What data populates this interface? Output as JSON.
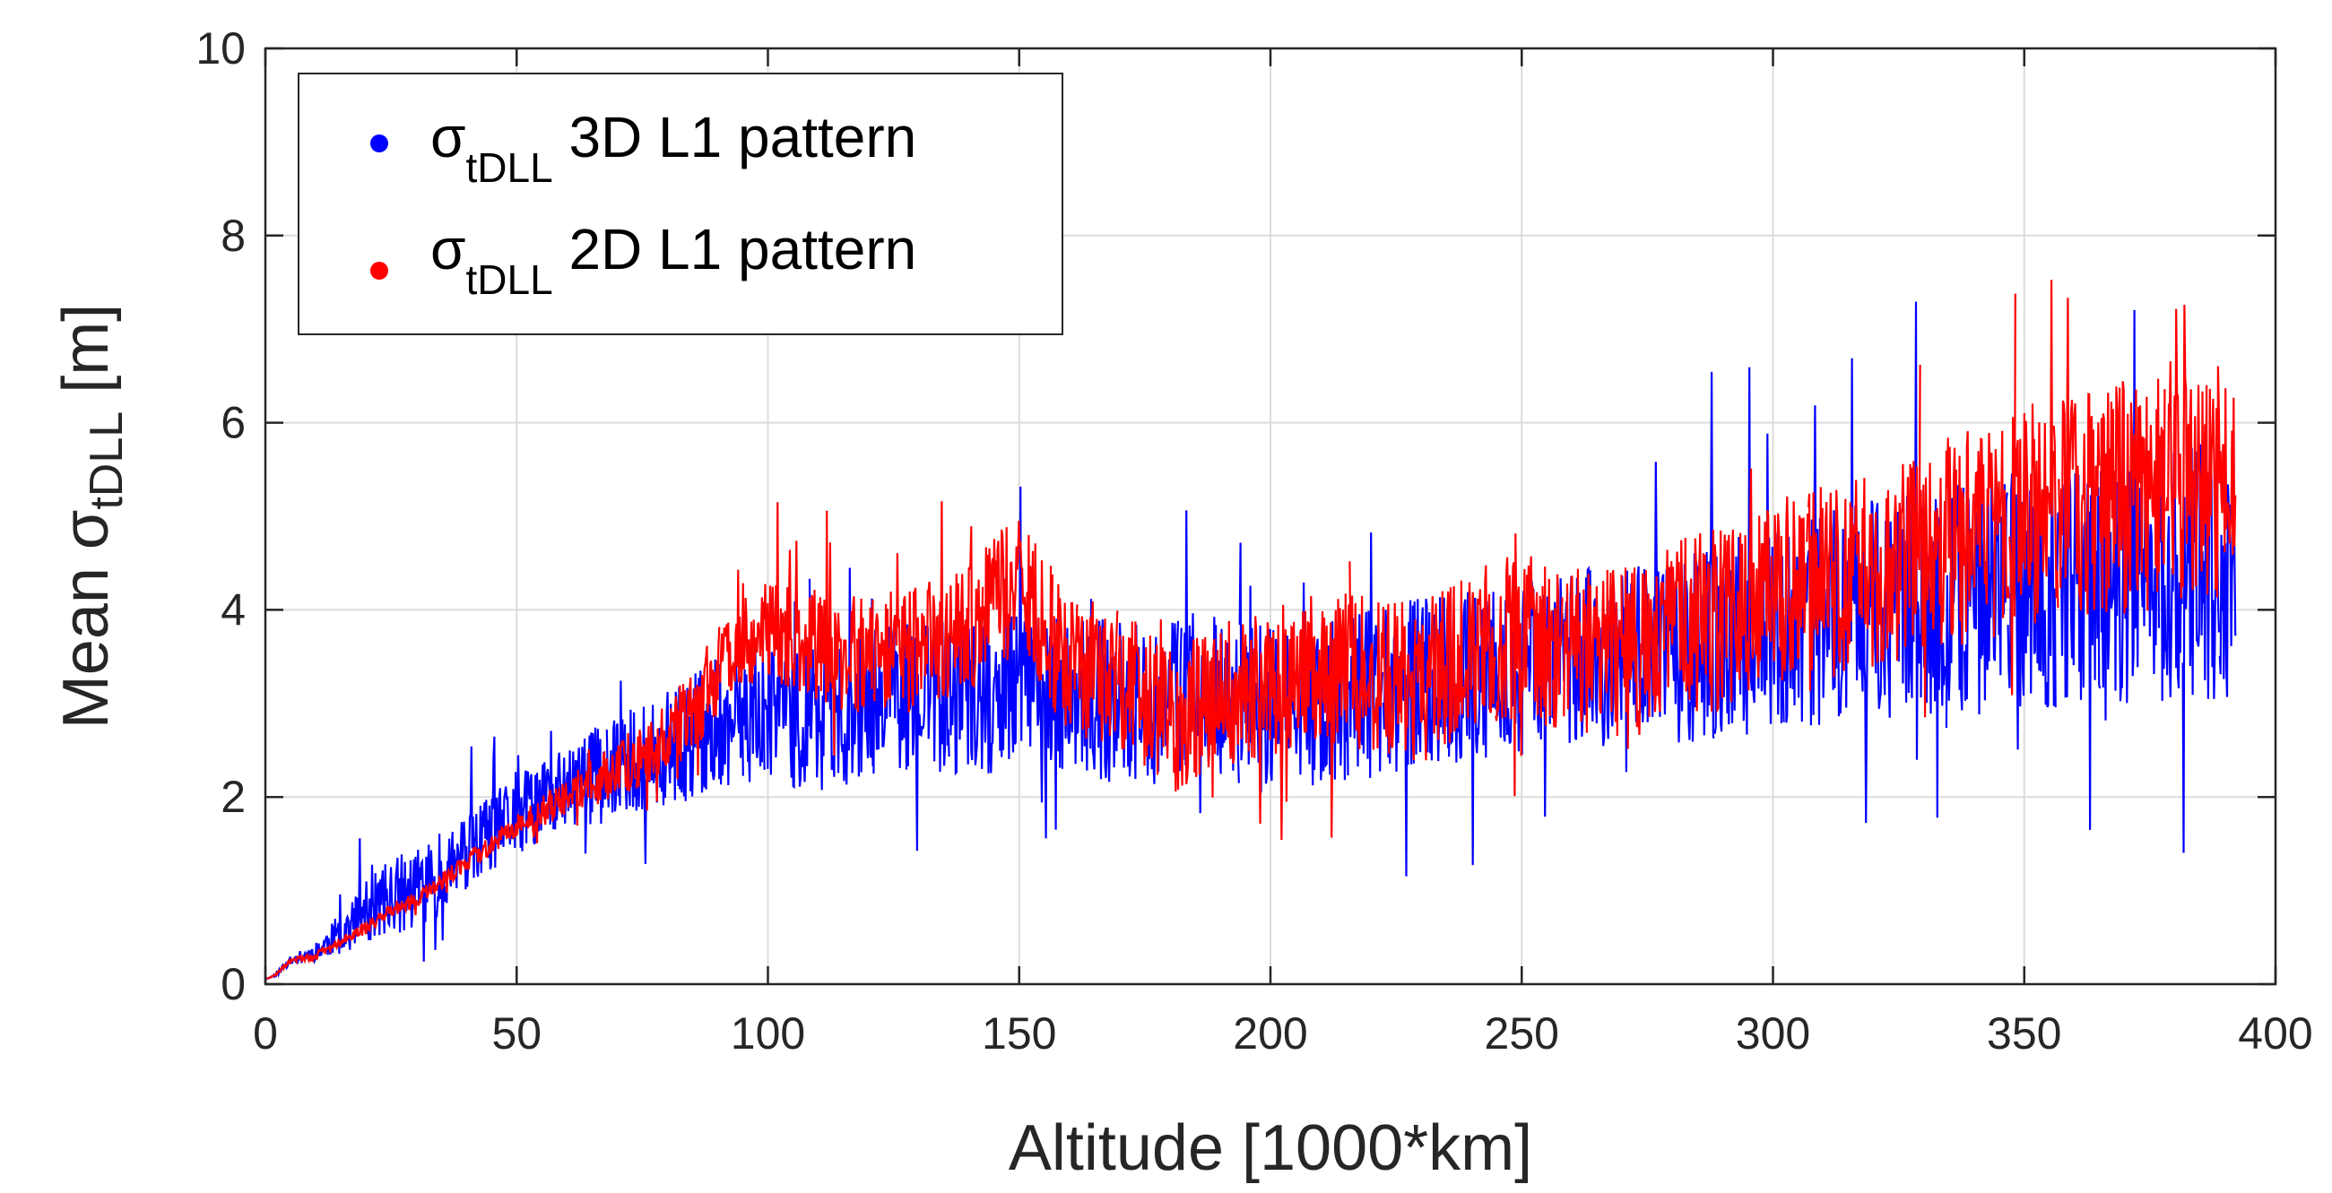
{
  "chart_data": {
    "type": "line",
    "xlabel": "Altitude [1000*km]",
    "ylabel": {
      "prefix": "Mean σ",
      "subscript": "tDLL",
      "suffix": " [m]"
    },
    "xlim": [
      0,
      400
    ],
    "ylim": [
      0,
      10
    ],
    "xticks": [
      0,
      50,
      100,
      150,
      200,
      250,
      300,
      350,
      400
    ],
    "yticks": [
      0,
      2,
      4,
      6,
      8,
      10
    ],
    "xtick_labels": [
      "0",
      "50",
      "100",
      "150",
      "200",
      "250",
      "300",
      "350",
      "400"
    ],
    "ytick_labels": [
      "0",
      "2",
      "4",
      "6",
      "8",
      "10"
    ],
    "grid": true,
    "legend_position": "top-left",
    "series": [
      {
        "name": "σtDLL 3D L1 pattern",
        "legend": {
          "symbol": "σ",
          "subscript": "tDLL",
          "text": " 3D L1 pattern"
        },
        "color": "#0000ff",
        "trend": {
          "x": [
            0,
            2,
            5,
            10,
            15,
            20,
            25,
            30,
            40,
            50,
            60,
            70,
            80,
            90,
            100,
            110,
            120,
            130,
            140,
            150,
            160,
            170,
            180,
            190,
            200,
            210,
            220,
            230,
            240,
            250,
            260,
            270,
            280,
            290,
            300,
            310,
            320,
            330,
            340,
            350,
            360,
            370,
            380,
            390
          ],
          "y": [
            0.05,
            0.1,
            0.25,
            0.35,
            0.55,
            0.75,
            0.95,
            1.0,
            1.4,
            1.8,
            2.1,
            2.3,
            2.5,
            2.8,
            2.9,
            2.8,
            3.0,
            3.1,
            3.0,
            3.2,
            3.1,
            3.0,
            3.0,
            3.1,
            2.9,
            3.0,
            3.1,
            3.2,
            3.3,
            3.4,
            3.5,
            3.5,
            3.6,
            3.7,
            3.8,
            3.9,
            4.0,
            4.1,
            4.1,
            4.2,
            4.3,
            4.3,
            4.4,
            4.4
          ]
        },
        "spread": {
          "x": [
            0,
            10,
            20,
            30,
            40,
            50,
            100,
            150,
            200,
            250,
            300,
            350,
            390
          ],
          "y": [
            0.0,
            0.1,
            0.35,
            0.45,
            0.4,
            0.45,
            0.75,
            0.85,
            0.9,
            0.95,
            1.1,
            1.3,
            1.4
          ]
        },
        "x_range": [
          0,
          392
        ],
        "seed": 11
      },
      {
        "name": "σtDLL 2D L1 pattern",
        "legend": {
          "symbol": "σ",
          "subscript": "tDLL",
          "text": " 2D L1 pattern"
        },
        "color": "#ff0000",
        "trend": {
          "x": [
            0,
            2,
            5,
            10,
            15,
            20,
            25,
            30,
            40,
            50,
            60,
            70,
            80,
            90,
            100,
            110,
            120,
            130,
            140,
            150,
            160,
            170,
            180,
            190,
            200,
            210,
            220,
            230,
            240,
            250,
            260,
            270,
            280,
            290,
            300,
            310,
            320,
            330,
            340,
            350,
            360,
            370,
            380,
            390
          ],
          "y": [
            0.05,
            0.1,
            0.25,
            0.3,
            0.45,
            0.6,
            0.8,
            0.9,
            1.3,
            1.7,
            2.0,
            2.3,
            2.6,
            3.3,
            3.8,
            3.6,
            3.5,
            3.6,
            3.8,
            4.3,
            3.4,
            3.3,
            2.8,
            3.1,
            3.2,
            3.4,
            3.3,
            3.2,
            3.6,
            3.7,
            3.6,
            3.5,
            3.8,
            3.9,
            4.3,
            4.3,
            4.4,
            4.7,
            4.8,
            5.0,
            5.1,
            5.2,
            5.3,
            5.4
          ]
        },
        "spread": {
          "x": [
            0,
            10,
            30,
            50,
            70,
            90,
            100,
            150,
            200,
            250,
            300,
            350,
            390
          ],
          "y": [
            0.0,
            0.05,
            0.08,
            0.12,
            0.3,
            0.5,
            0.6,
            0.75,
            0.8,
            0.9,
            1.0,
            1.2,
            1.3
          ]
        },
        "x_range": [
          0,
          392
        ],
        "seed": 29
      }
    ]
  }
}
